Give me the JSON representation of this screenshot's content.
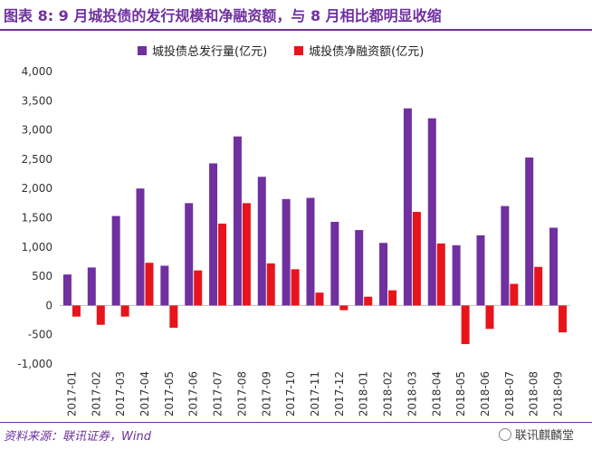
{
  "title": "图表 8: 9 月城投债的发行规模和净融资额，与 8 月相比都明显收缩",
  "source": "资料来源：联讯证券，Wind",
  "brand": {
    "name": "联讯麒麟堂",
    "icon": "wechat-icon"
  },
  "colors": {
    "gross": "#7030a0",
    "net": "#e8141b",
    "accent": "#7030a0"
  },
  "chart_data": {
    "type": "bar",
    "categories": [
      "2017-01",
      "2017-02",
      "2017-03",
      "2017-04",
      "2017-05",
      "2017-06",
      "2017-07",
      "2017-08",
      "2017-09",
      "2017-10",
      "2017-11",
      "2017-12",
      "2018-01",
      "2018-02",
      "2018-03",
      "2018-04",
      "2018-05",
      "2018-06",
      "2018-07",
      "2018-08",
      "2018-09"
    ],
    "series": [
      {
        "name": "城投债总发行量(亿元)",
        "color": "#7030a0",
        "values": [
          530,
          650,
          1530,
          2000,
          680,
          1750,
          2430,
          2890,
          2200,
          1820,
          1840,
          1430,
          1290,
          1070,
          3370,
          3200,
          1030,
          1200,
          1700,
          2530,
          1330
        ]
      },
      {
        "name": "城投债净融资额(亿元)",
        "color": "#e8141b",
        "values": [
          -190,
          -330,
          -190,
          730,
          -380,
          600,
          1400,
          1750,
          720,
          620,
          220,
          -80,
          150,
          260,
          1600,
          1060,
          -660,
          -400,
          370,
          660,
          -460
        ]
      }
    ],
    "ylim": [
      -1000,
      4000
    ],
    "yticks": [
      "4,000",
      "3,500",
      "3,000",
      "2,500",
      "2,000",
      "1,500",
      "1,000",
      "500",
      "0",
      "-500",
      "-1,000"
    ],
    "ytick_values": [
      4000,
      3500,
      3000,
      2500,
      2000,
      1500,
      1000,
      500,
      0,
      -500,
      -1000
    ],
    "grid": false,
    "legend_position": "top"
  }
}
